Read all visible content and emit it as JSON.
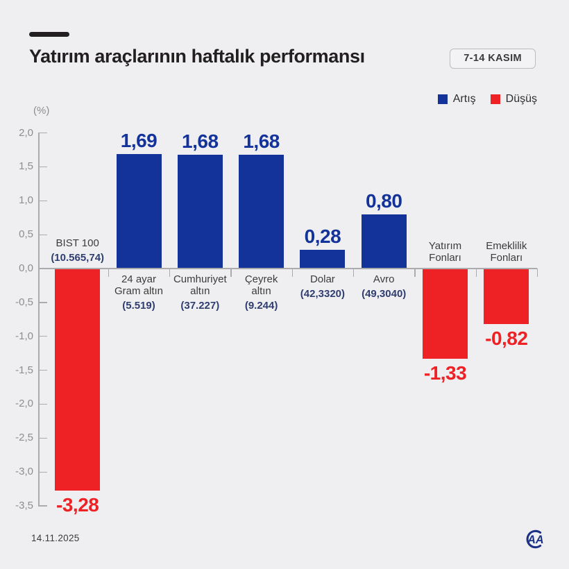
{
  "header": {
    "title": "Yatırım araçlarının haftalık performansı",
    "date_badge": "7-14 KASIM"
  },
  "legend": [
    {
      "label": "Artış",
      "color": "#13339B"
    },
    {
      "label": "Düşüş",
      "color": "#EE2125"
    }
  ],
  "footer": {
    "date": "14.11.2025",
    "logo": "AA"
  },
  "chart_data": {
    "type": "bar",
    "title": "Yatırım araçlarının haftalık performansı",
    "unit_label": "(%)",
    "ylabel": "(%)",
    "ylim": [
      -3.5,
      2.0
    ],
    "ytick_step": 0.5,
    "grid": false,
    "legend_position": "top-right",
    "yticks": [
      {
        "v": 2.0,
        "label": "2,0"
      },
      {
        "v": 1.5,
        "label": "1,5"
      },
      {
        "v": 1.0,
        "label": "1,0"
      },
      {
        "v": 0.5,
        "label": "0,5"
      },
      {
        "v": 0.0,
        "label": "0,0"
      },
      {
        "v": -0.5,
        "label": "-0,5"
      },
      {
        "v": -1.0,
        "label": "-1,0"
      },
      {
        "v": -1.5,
        "label": "-1,5"
      },
      {
        "v": -2.0,
        "label": "-2,0"
      },
      {
        "v": -2.5,
        "label": "-2,5"
      },
      {
        "v": -3.0,
        "label": "-3,0"
      },
      {
        "v": -3.5,
        "label": "-3,5"
      }
    ],
    "categories": [
      "BIST 100",
      "24 ayar Gram altın",
      "Cumhuriyet altın",
      "Çeyrek altın",
      "Dolar",
      "Avro",
      "Yatırım Fonları",
      "Emeklilik Fonları"
    ],
    "values": [
      -3.28,
      1.69,
      1.68,
      1.68,
      0.28,
      0.8,
      -1.33,
      -0.82
    ],
    "bars": [
      {
        "name_lines": [
          "BIST 100"
        ],
        "sub": "(10.565,74)",
        "value": -3.28,
        "value_label": "-3,28"
      },
      {
        "name_lines": [
          "24 ayar",
          "Gram altın"
        ],
        "sub": "(5.519)",
        "value": 1.69,
        "value_label": "1,69"
      },
      {
        "name_lines": [
          "Cumhuriyet",
          "altın"
        ],
        "sub": "(37.227)",
        "value": 1.68,
        "value_label": "1,68"
      },
      {
        "name_lines": [
          "Çeyrek",
          "altın"
        ],
        "sub": "(9.244)",
        "value": 1.68,
        "value_label": "1,68"
      },
      {
        "name_lines": [
          "Dolar"
        ],
        "sub": "(42,3320)",
        "value": 0.28,
        "value_label": "0,28"
      },
      {
        "name_lines": [
          "Avro"
        ],
        "sub": "(49,3040)",
        "value": 0.8,
        "value_label": "0,80"
      },
      {
        "name_lines": [
          "Yatırım",
          "Fonları"
        ],
        "sub": null,
        "value": -1.33,
        "value_label": "-1,33"
      },
      {
        "name_lines": [
          "Emeklilik",
          "Fonları"
        ],
        "sub": null,
        "value": -0.82,
        "value_label": "-0,82"
      }
    ],
    "colors": {
      "positive": "#13339B",
      "negative": "#EE2125",
      "axis": "#ABABAE",
      "tick_text": "#8D8D90",
      "category_text": "#3B3B3B",
      "sub_text": "#2F3D70",
      "logo": "#1B3186"
    }
  }
}
